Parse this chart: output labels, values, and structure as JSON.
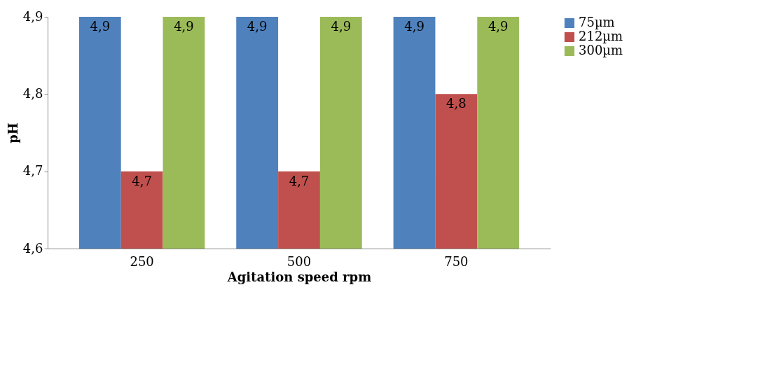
{
  "chart_data": {
    "type": "bar",
    "xlabel": "Agitation speed rpm",
    "ylabel": "pH",
    "categories": [
      "250",
      "500",
      "750"
    ],
    "series": [
      {
        "name": "75µm",
        "color": "#4f81bd",
        "values": [
          4.9,
          4.9,
          4.9
        ],
        "value_labels": [
          "4,9",
          "4,9",
          "4,9"
        ]
      },
      {
        "name": "212µm",
        "color": "#c0504d",
        "values": [
          4.7,
          4.7,
          4.8
        ],
        "value_labels": [
          "4,7",
          "4,7",
          "4,8"
        ]
      },
      {
        "name": "300µm",
        "color": "#9bbb59",
        "values": [
          4.9,
          4.9,
          4.9
        ],
        "value_labels": [
          "4,9",
          "4,9",
          "4,9"
        ]
      }
    ],
    "ylim": [
      4.6,
      4.9
    ],
    "yticks": [
      {
        "value": 4.6,
        "label": "4,6"
      },
      {
        "value": 4.7,
        "label": "4,7"
      },
      {
        "value": 4.8,
        "label": "4,8"
      },
      {
        "value": 4.9,
        "label": "4,9"
      }
    ],
    "grid": false,
    "legend": "right"
  }
}
